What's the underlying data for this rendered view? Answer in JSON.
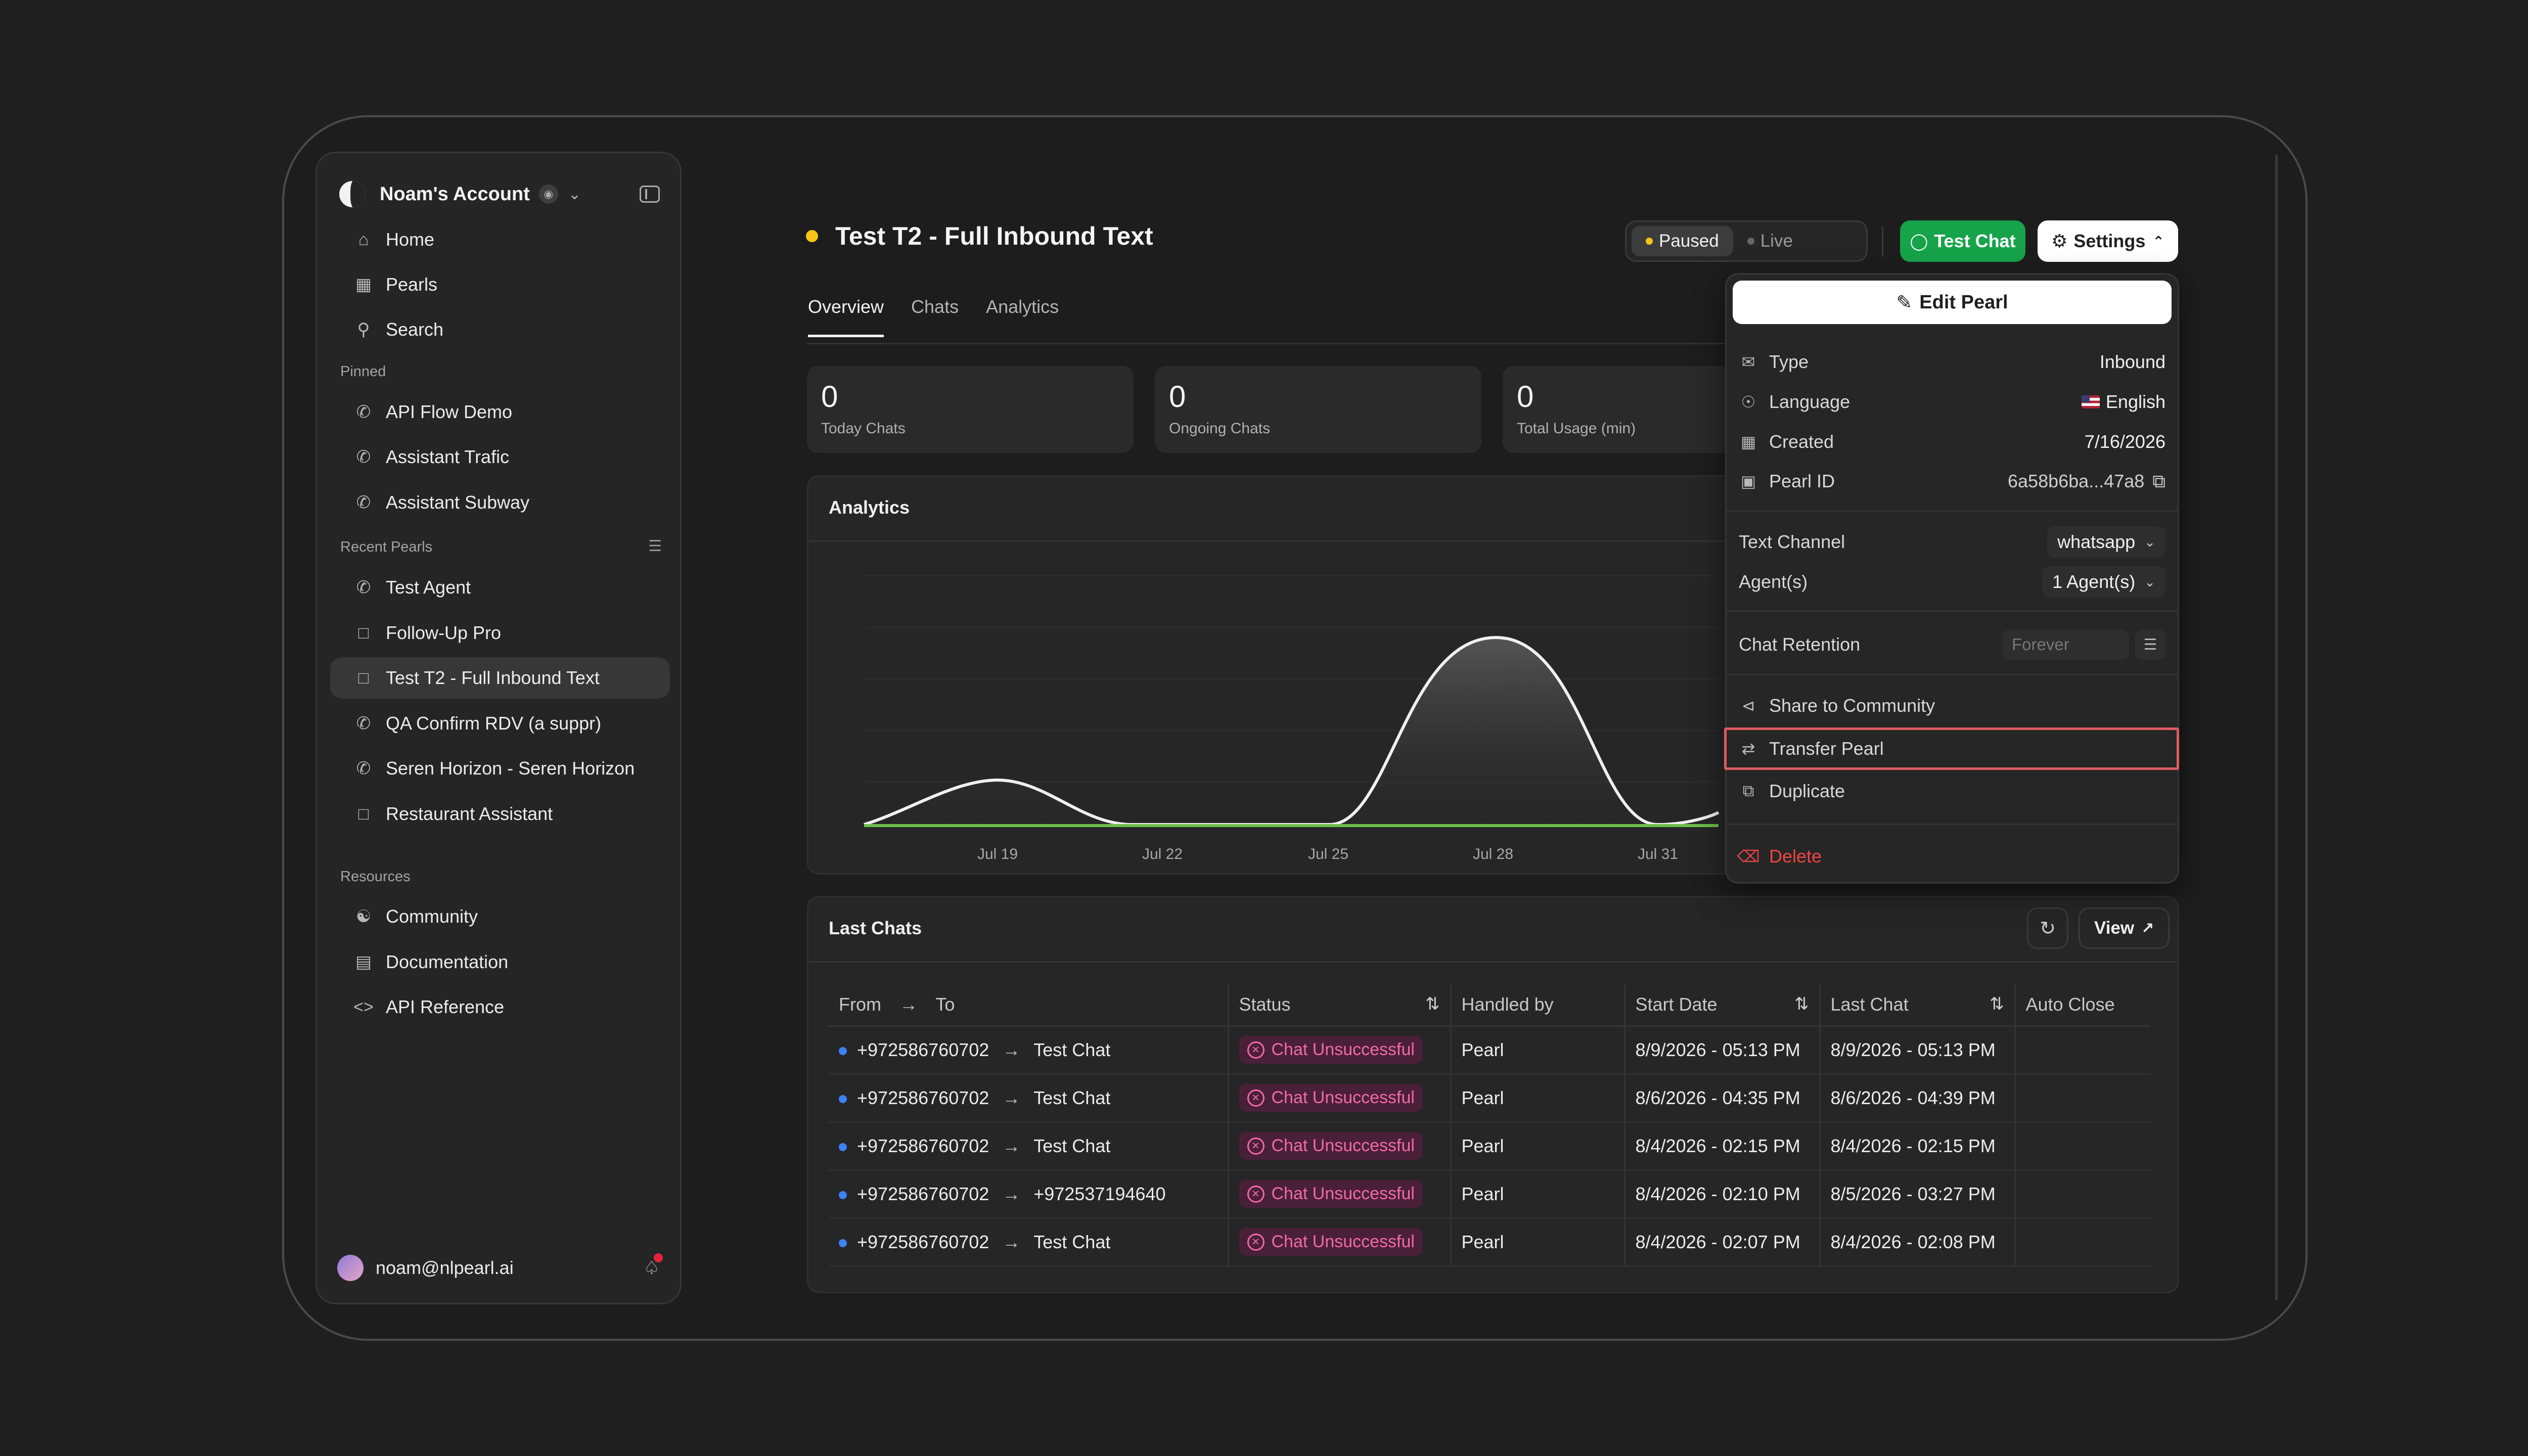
{
  "sidebar": {
    "account_name": "Noam's Account",
    "nav": [
      {
        "label": "Home",
        "icon": "home-icon"
      },
      {
        "label": "Pearls",
        "icon": "grid-icon"
      },
      {
        "label": "Search",
        "icon": "search-icon"
      }
    ],
    "pinned_label": "Pinned",
    "pinned": [
      {
        "label": "API Flow Demo"
      },
      {
        "label": "Assistant Trafic"
      },
      {
        "label": "Assistant Subway"
      }
    ],
    "recent_label": "Recent Pearls",
    "recent": [
      {
        "label": "Test Agent"
      },
      {
        "label": "Follow-Up Pro"
      },
      {
        "label": "Test T2 - Full Inbound Text",
        "active": true
      },
      {
        "label": "QA Confirm RDV (a suppr)"
      },
      {
        "label": "Seren Horizon - Seren Horizon"
      },
      {
        "label": "Restaurant Assistant"
      }
    ],
    "resources_label": "Resources",
    "resources": [
      {
        "label": "Community",
        "icon": "community-icon"
      },
      {
        "label": "Documentation",
        "icon": "book-icon"
      },
      {
        "label": "API Reference",
        "icon": "code-icon"
      }
    ],
    "user_email": "noam@nlpearl.ai"
  },
  "header": {
    "title": "Test T2 - Full Inbound Text",
    "status_paused": "Paused",
    "status_live": "Live",
    "test_chat_label": "Test Chat",
    "settings_label": "Settings"
  },
  "tabs": [
    {
      "label": "Overview",
      "active": true
    },
    {
      "label": "Chats"
    },
    {
      "label": "Analytics"
    }
  ],
  "stats": [
    {
      "value": "0",
      "label": "Today Chats"
    },
    {
      "value": "0",
      "label": "Ongoing Chats"
    },
    {
      "value": "0",
      "label": "Total Usage (min)"
    }
  ],
  "analytics": {
    "title": "Analytics",
    "x_ticks": [
      "Jul 19",
      "Jul 22",
      "Jul 25",
      "Jul 28",
      "Jul 31"
    ]
  },
  "last_chats": {
    "title": "Last Chats",
    "view_label": "View",
    "columns": {
      "from": "From",
      "to": "To",
      "status": "Status",
      "handled_by": "Handled by",
      "start_date": "Start Date",
      "last_chat": "Last Chat",
      "auto_close": "Auto Close"
    },
    "rows": [
      {
        "from": "+972586760702",
        "to": "Test Chat",
        "status": "Chat Unsuccessful",
        "handled_by": "Pearl",
        "start": "8/9/2026 - 05:13 PM",
        "last": "8/9/2026 - 05:13 PM",
        "auto_close": ""
      },
      {
        "from": "+972586760702",
        "to": "Test Chat",
        "status": "Chat Unsuccessful",
        "handled_by": "Pearl",
        "start": "8/6/2026 - 04:35 PM",
        "last": "8/6/2026 - 04:39 PM",
        "auto_close": ""
      },
      {
        "from": "+972586760702",
        "to": "Test Chat",
        "status": "Chat Unsuccessful",
        "handled_by": "Pearl",
        "start": "8/4/2026 - 02:15 PM",
        "last": "8/4/2026 - 02:15 PM",
        "auto_close": ""
      },
      {
        "from": "+972586760702",
        "to": "+972537194640",
        "status": "Chat Unsuccessful",
        "handled_by": "Pearl",
        "start": "8/4/2026 - 02:10 PM",
        "last": "8/5/2026 - 03:27 PM",
        "auto_close": ""
      },
      {
        "from": "+972586760702",
        "to": "Test Chat",
        "status": "Chat Unsuccessful",
        "handled_by": "Pearl",
        "start": "8/4/2026 - 02:07 PM",
        "last": "8/4/2026 - 02:08 PM",
        "auto_close": ""
      }
    ]
  },
  "settings_menu": {
    "edit_label": "Edit Pearl",
    "type_label": "Type",
    "type_value": "Inbound",
    "language_label": "Language",
    "language_value": "English",
    "created_label": "Created",
    "created_value": "7/16/2026",
    "pearl_id_label": "Pearl ID",
    "pearl_id_value": "6a58b6ba...47a8",
    "text_channel_label": "Text Channel",
    "text_channel_value": "whatsapp",
    "agents_label": "Agent(s)",
    "agents_value": "1 Agent(s)",
    "retention_label": "Chat Retention",
    "retention_placeholder": "Forever",
    "share_label": "Share to Community",
    "transfer_label": "Transfer Pearl",
    "duplicate_label": "Duplicate",
    "delete_label": "Delete"
  },
  "colors": {
    "accent_green": "#16a34a",
    "paused_yellow": "#f5c518",
    "danger_red": "#ef4444",
    "badge_pink": "#f06aa8",
    "row_dot_blue": "#3b82f6"
  }
}
